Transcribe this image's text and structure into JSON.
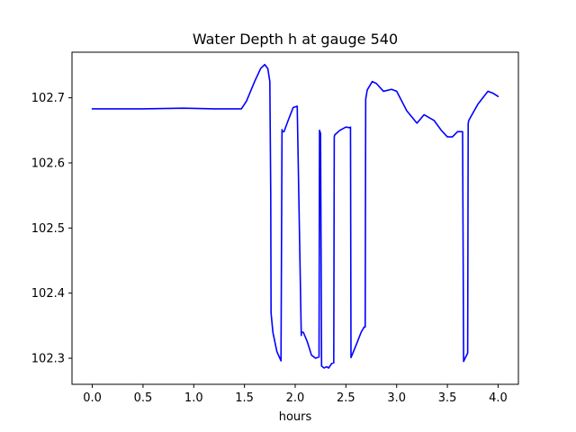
{
  "chart_data": {
    "type": "line",
    "title": "Water Depth h at gauge 540",
    "xlabel": "hours",
    "ylabel": "",
    "xlim": [
      -0.2,
      4.2
    ],
    "ylim": [
      102.26,
      102.77
    ],
    "xticks": [
      0.0,
      0.5,
      1.0,
      1.5,
      2.0,
      2.5,
      3.0,
      3.5,
      4.0
    ],
    "xtick_labels": [
      "0.0",
      "0.5",
      "1.0",
      "1.5",
      "2.0",
      "2.5",
      "3.0",
      "3.5",
      "4.0"
    ],
    "yticks": [
      102.3,
      102.4,
      102.5,
      102.6,
      102.7
    ],
    "ytick_labels": [
      "102.3",
      "102.4",
      "102.5",
      "102.6",
      "102.7"
    ],
    "grid": false,
    "legend": "none",
    "series": [
      {
        "color": "#0000ff",
        "x": [
          0.0,
          0.5,
          0.9,
          1.2,
          1.47,
          1.52,
          1.6,
          1.66,
          1.7,
          1.73,
          1.75,
          1.759,
          1.762,
          1.78,
          1.82,
          1.86,
          1.87,
          1.873,
          1.89,
          1.93,
          1.98,
          2.02,
          2.06,
          2.062,
          2.08,
          2.12,
          2.16,
          2.2,
          2.235,
          2.24,
          2.25,
          2.26,
          2.285,
          2.31,
          2.33,
          2.36,
          2.38,
          2.385,
          2.39,
          2.44,
          2.5,
          2.54,
          2.545,
          2.55,
          2.6,
          2.65,
          2.68,
          2.69,
          2.695,
          2.71,
          2.76,
          2.8,
          2.87,
          2.95,
          3.0,
          3.1,
          3.2,
          3.27,
          3.37,
          3.44,
          3.5,
          3.55,
          3.6,
          3.65,
          3.66,
          3.665,
          3.7,
          3.705,
          3.71,
          3.8,
          3.9,
          3.95,
          4.0
        ],
        "y": [
          102.683,
          102.683,
          102.684,
          102.683,
          102.683,
          102.695,
          102.725,
          102.745,
          102.751,
          102.745,
          102.725,
          102.55,
          102.37,
          102.34,
          102.31,
          102.296,
          102.651,
          102.648,
          102.648,
          102.665,
          102.685,
          102.687,
          102.335,
          102.34,
          102.34,
          102.325,
          102.305,
          102.3,
          102.302,
          102.65,
          102.645,
          102.288,
          102.285,
          102.287,
          102.285,
          102.292,
          102.293,
          102.64,
          102.643,
          102.65,
          102.655,
          102.654,
          102.655,
          102.301,
          102.32,
          102.34,
          102.348,
          102.348,
          102.698,
          102.712,
          102.725,
          102.722,
          102.71,
          102.713,
          102.71,
          102.68,
          102.661,
          102.674,
          102.665,
          102.65,
          102.64,
          102.64,
          102.648,
          102.648,
          102.295,
          102.297,
          102.308,
          102.66,
          102.665,
          102.69,
          102.71,
          102.707,
          102.702
        ]
      }
    ]
  }
}
